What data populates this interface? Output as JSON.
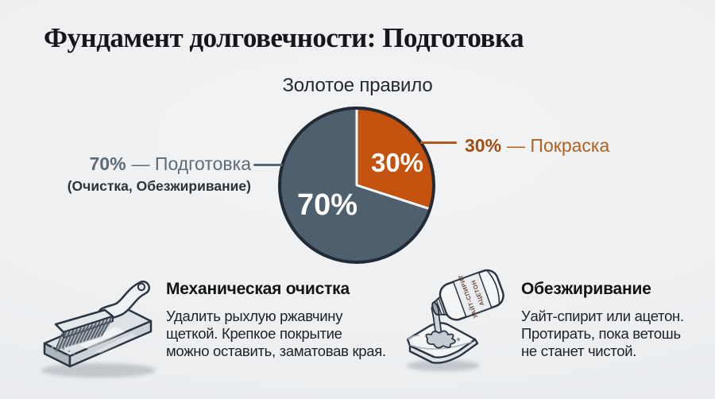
{
  "page": {
    "background_color": "#edeff1"
  },
  "title": "Фундамент долговечности: Подготовка",
  "chart_data": {
    "type": "pie",
    "title": "Золотое правило",
    "direction": "clockwise",
    "start_angle_deg_from_top": 0,
    "legend_position": "side-callouts",
    "slices": [
      {
        "label": "Покраска",
        "value": 30,
        "pct_label": "30%",
        "color": "#c2520e"
      },
      {
        "label": "Подготовка",
        "value": 70,
        "pct_label": "70%",
        "color": "#4e5f6e"
      }
    ],
    "callout_left": {
      "pct": "70%",
      "rest": "— Подготовка",
      "sublabel": "(Очистка, Обезжиривание)",
      "color": "#5d6c79"
    },
    "callout_right": {
      "pct": "30%",
      "rest": "— Покраска",
      "color": "#b2611f"
    }
  },
  "sections": [
    {
      "icon": "wire-brush-on-metal-plate",
      "heading": "Механическая очистка",
      "body_lines": [
        "Удалить рыхлую ржавчину",
        "щеткой. Крепкое покрытие",
        "можно оставить, заматовав края."
      ]
    },
    {
      "icon": "solvent-bottle-pouring-on-rag",
      "heading": "Обезжиривание",
      "body_lines": [
        "Уайт-спирит или ацетон.",
        "Протирать, пока ветошь",
        "не станет чистой."
      ],
      "bottle_label_lines": [
        "УАЙТ-СПИРИТ",
        "АЦЕТОН"
      ]
    }
  ]
}
